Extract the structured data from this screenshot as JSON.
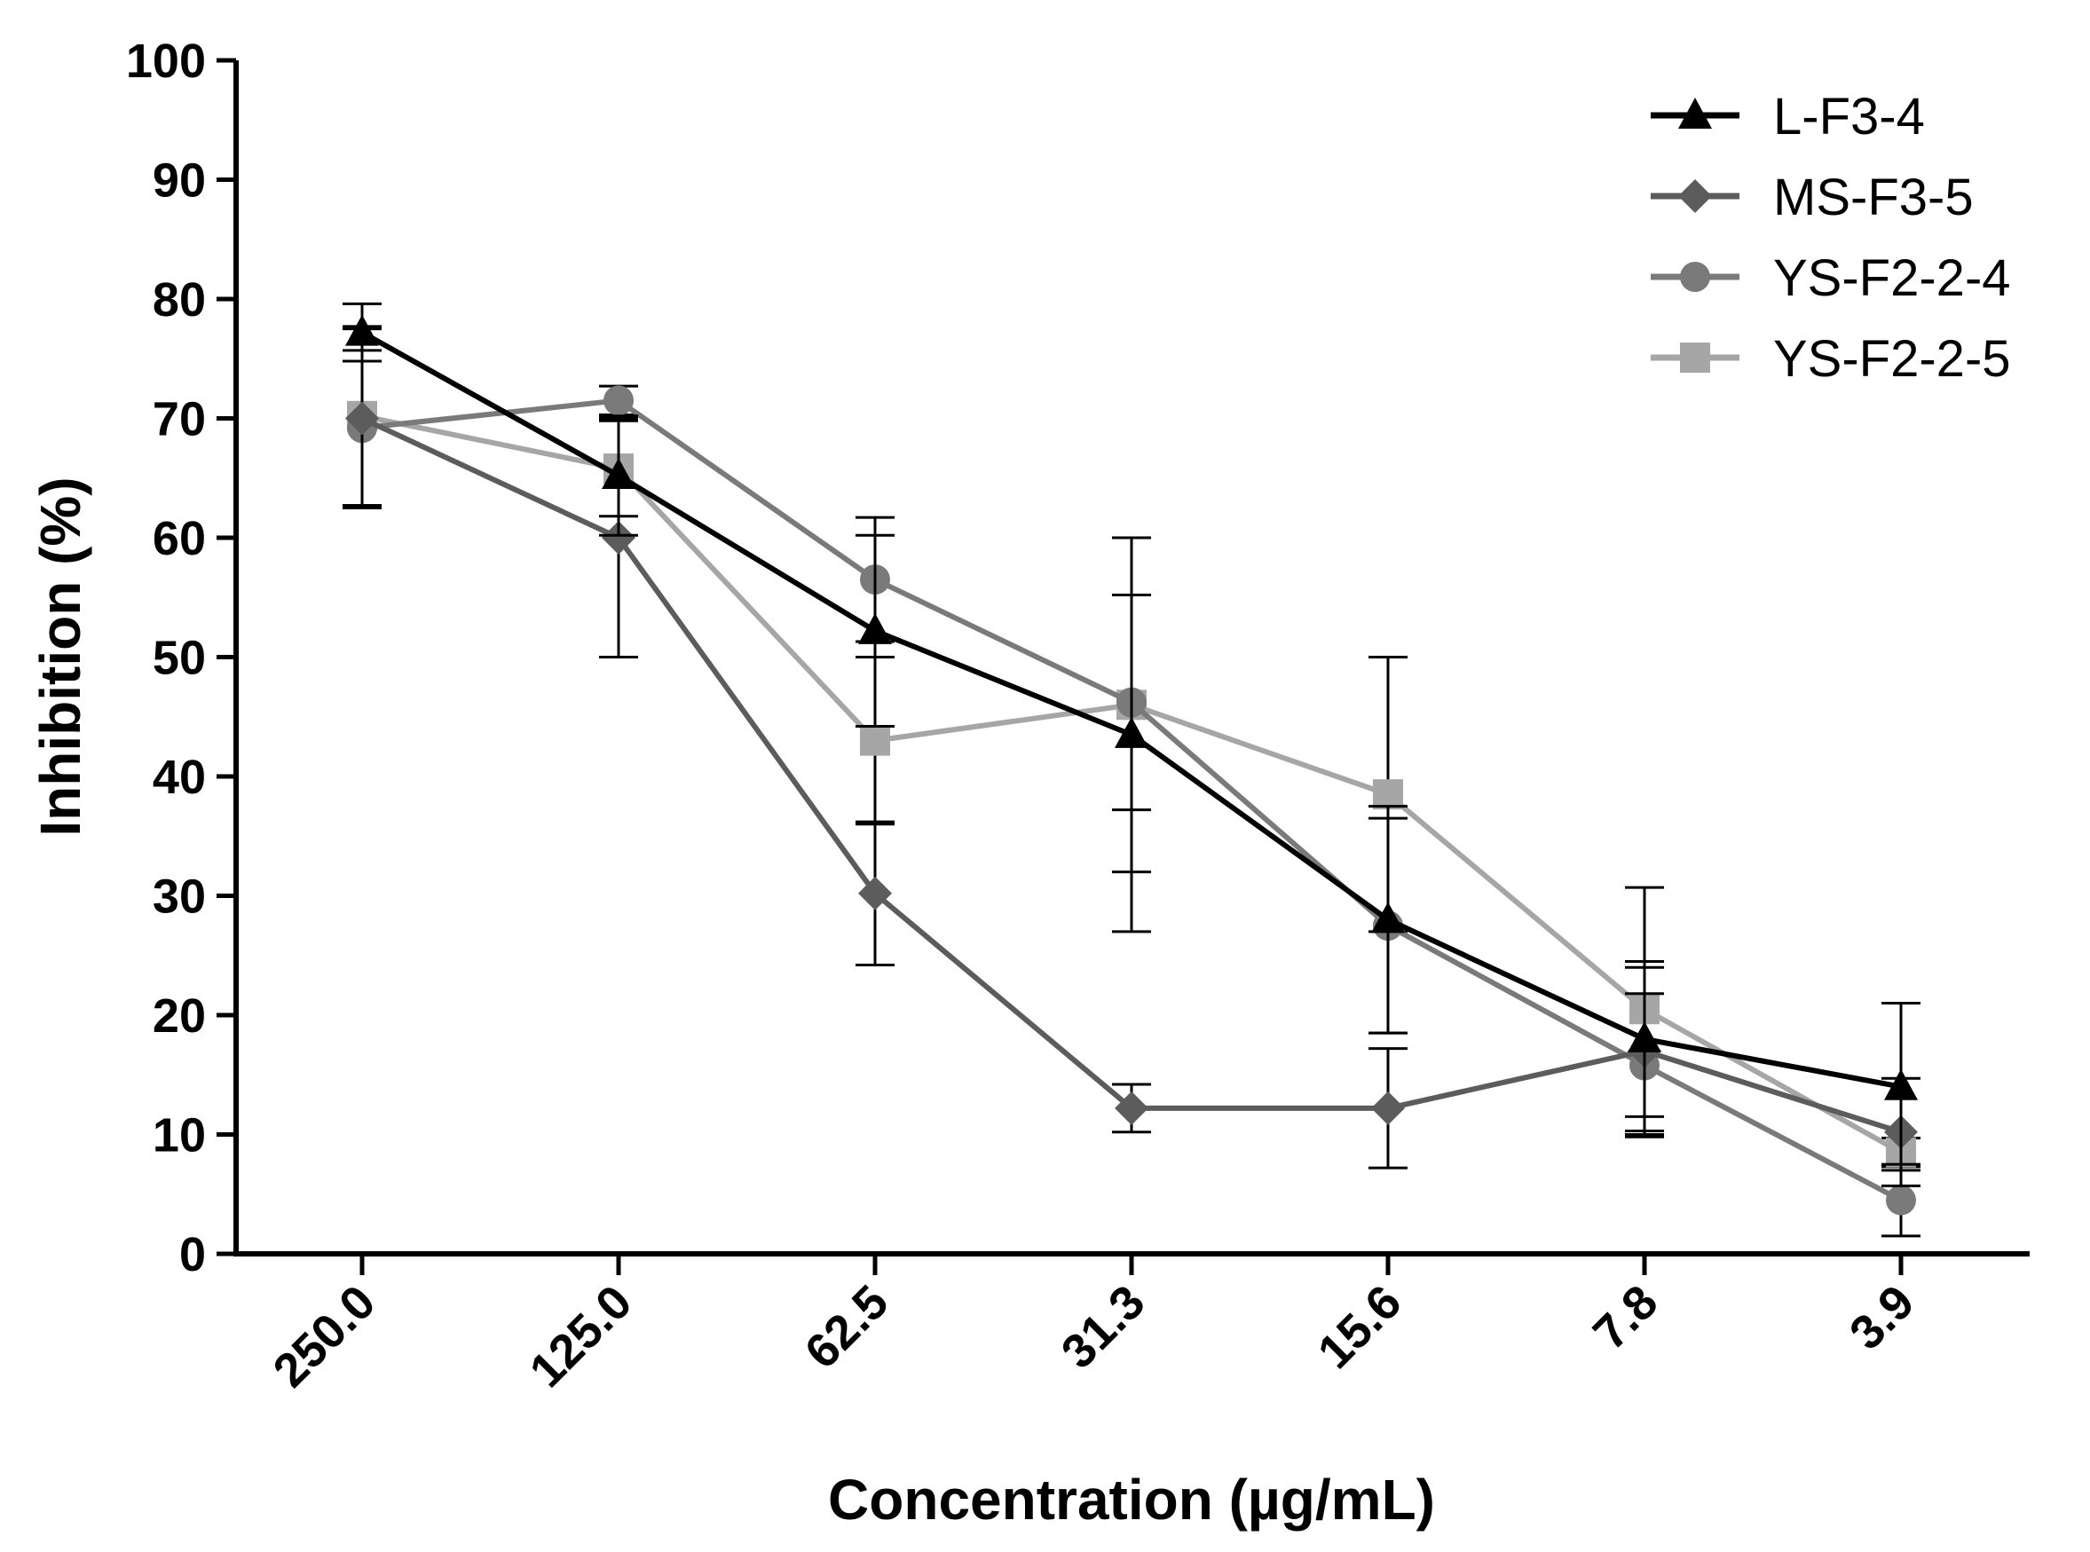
{
  "chart_data": {
    "type": "line",
    "title": "",
    "xlabel": "Concentration (µg/mL)",
    "ylabel": "Inhibition (%)",
    "categories": [
      "250.0",
      "125.0",
      "62.5",
      "31.3",
      "15.6",
      "7.8",
      "3.9"
    ],
    "ylim": [
      0,
      100
    ],
    "yticks": [
      0,
      10,
      20,
      30,
      40,
      50,
      60,
      70,
      80,
      90,
      100
    ],
    "legend_position": "top-right",
    "series": [
      {
        "name": "L-F3-4",
        "marker": "triangle",
        "color": "#000000",
        "values": [
          77.2,
          65.2,
          52.2,
          43.5,
          28.0,
          18.0,
          14.0
        ],
        "errors": [
          2.4,
          5.0,
          8.0,
          16.5,
          9.5,
          6.5,
          7.0
        ]
      },
      {
        "name": "MS-F3-5",
        "marker": "diamond",
        "color": "#5c5c5c",
        "values": [
          70.0,
          60.0,
          30.2,
          12.2,
          12.2,
          17.0,
          10.2
        ],
        "errors": [
          7.5,
          10.0,
          6.0,
          2.0,
          5.0,
          7.0,
          4.5
        ]
      },
      {
        "name": "YS-F2-2-4",
        "marker": "circle",
        "color": "#7a7a7a",
        "values": [
          69.2,
          71.5,
          56.5,
          46.2,
          27.5,
          15.8,
          4.5
        ],
        "errors": [
          6.5,
          1.2,
          5.2,
          9.0,
          9.0,
          6.0,
          3.0
        ]
      },
      {
        "name": "YS-F2-2-5",
        "marker": "square",
        "color": "#a6a6a6",
        "values": [
          70.2,
          65.8,
          43.0,
          46.0,
          38.5,
          20.5,
          8.5
        ],
        "errors": [
          7.5,
          4.0,
          7.0,
          14.0,
          11.5,
          10.2,
          1.2
        ]
      }
    ]
  }
}
